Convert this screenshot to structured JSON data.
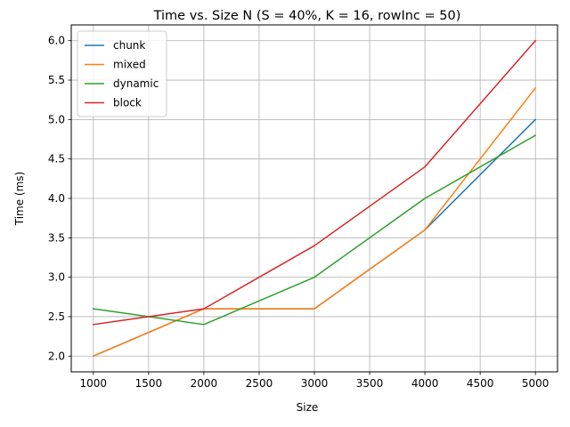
{
  "chart_data": {
    "type": "line",
    "title": "Time vs. Size N (S = 40%, K = 16, rowInc = 50)",
    "xlabel": "Size",
    "ylabel": "Time (ms)",
    "x": [
      1000,
      2000,
      3000,
      4000,
      5000
    ],
    "xlim": [
      800,
      5200
    ],
    "ylim": [
      1.8,
      6.2
    ],
    "xticks": [
      "1000",
      "1500",
      "2000",
      "2500",
      "3000",
      "3500",
      "4000",
      "4500",
      "5000"
    ],
    "yticks": [
      "2.0",
      "2.5",
      "3.0",
      "3.5",
      "4.0",
      "4.5",
      "5.0",
      "5.5",
      "6.0"
    ],
    "grid": true,
    "legend_position": "top-left",
    "series": [
      {
        "name": "chunk",
        "color": "#1f77b4",
        "values": [
          2.0,
          2.6,
          2.6,
          3.6,
          5.0
        ]
      },
      {
        "name": "mixed",
        "color": "#ff7f0e",
        "values": [
          2.0,
          2.6,
          2.6,
          3.6,
          5.4
        ]
      },
      {
        "name": "dynamic",
        "color": "#2ca02c",
        "values": [
          2.6,
          2.4,
          3.0,
          4.0,
          4.8
        ]
      },
      {
        "name": "block",
        "color": "#d62728",
        "values": [
          2.4,
          2.6,
          3.4,
          4.4,
          6.0
        ]
      }
    ]
  }
}
